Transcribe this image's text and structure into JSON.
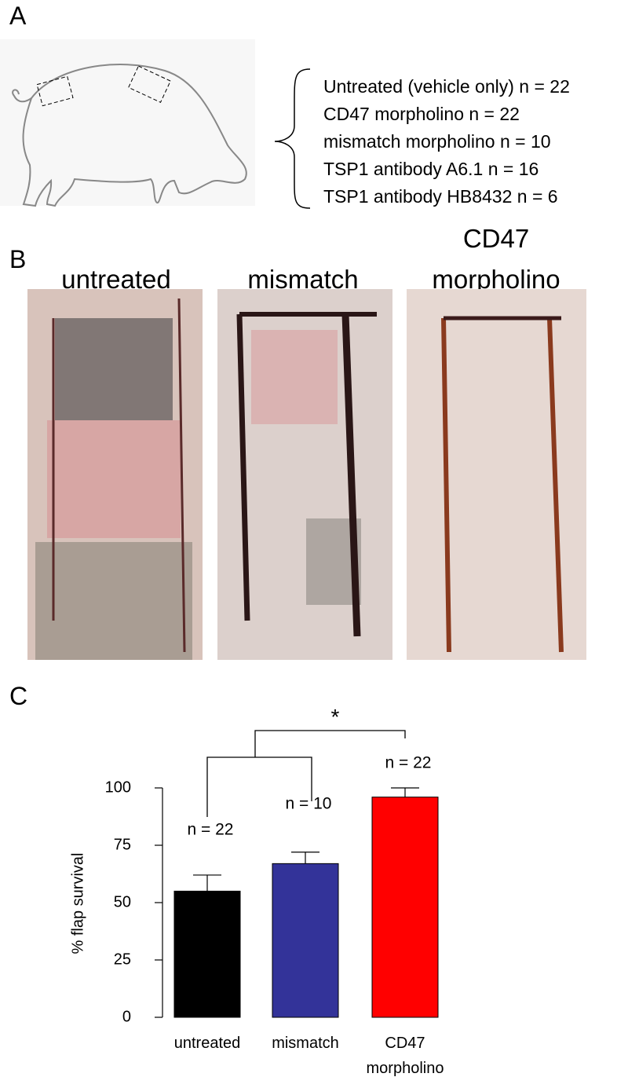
{
  "panel_a": {
    "label": "A",
    "groups": [
      "Untreated (vehicle only) n = 22",
      "CD47 morpholino n = 22",
      "mismatch morpholino n = 10",
      "TSP1 antibody A6.1 n = 16",
      "TSP1 antibody HB8432  n = 6"
    ]
  },
  "panel_b": {
    "label": "B",
    "photos": [
      "untreated",
      "mismatch",
      "CD47 morpholino"
    ]
  },
  "panel_c": {
    "label": "C"
  },
  "chart_data": {
    "type": "bar",
    "ylabel": "% flap survival",
    "categories": [
      "untreated",
      "mismatch",
      "CD47 morpholino"
    ],
    "values": [
      55,
      67,
      96
    ],
    "errors": [
      7,
      5,
      4
    ],
    "value_annotations": [
      "n = 22",
      "n = 10",
      "n = 22"
    ],
    "colors": [
      "#000000",
      "#333399",
      "#ff0000"
    ],
    "significance": "*",
    "ylim": [
      0,
      100
    ],
    "yticks": [
      0,
      25,
      50,
      75,
      100
    ]
  }
}
